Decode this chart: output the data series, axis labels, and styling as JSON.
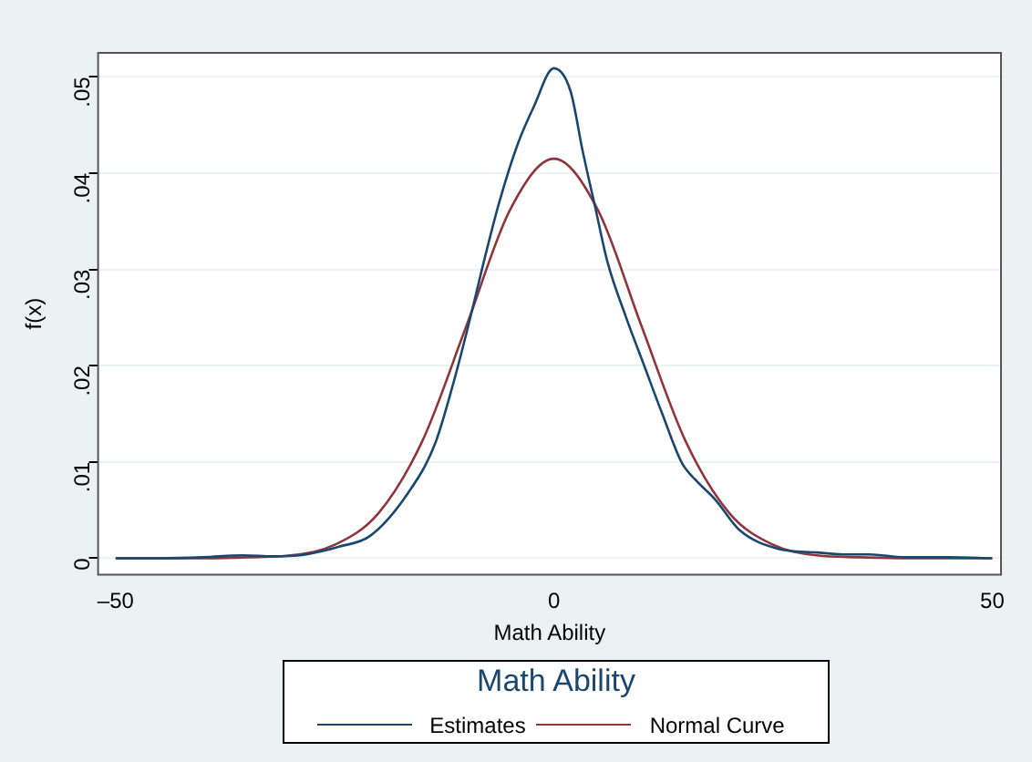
{
  "chart_data": {
    "type": "line",
    "xlabel": "Math Ability",
    "ylabel": "f(x)",
    "legend_title": "Math Ability",
    "legend": "bottom",
    "grid": "y",
    "marker": "none",
    "line_style": "solid",
    "xlim": [
      -52,
      51
    ],
    "ylim": [
      -0.0017,
      0.0525
    ],
    "xticks": [
      {
        "value": -50,
        "label": "–50"
      },
      0,
      50
    ],
    "yticks": [
      0,
      {
        "value": 0.01,
        "label": ".01"
      },
      {
        "value": 0.02,
        "label": ".02"
      },
      {
        "value": 0.03,
        "label": ".03"
      },
      {
        "value": 0.04,
        "label": ".04"
      },
      {
        "value": 0.05,
        "label": ".05"
      }
    ],
    "series": [
      {
        "name": "Estimates",
        "color": "#1a476f",
        "x": [
          -50,
          -45,
          -40,
          -35.5,
          -32,
          -29,
          -26.6,
          -24.5,
          -21,
          -16.7,
          -13.6,
          -11.5,
          -9.7,
          -8,
          -6.2,
          -4.1,
          -2.3,
          0,
          1.9,
          3.3,
          4.7,
          6.1,
          8.2,
          10.3,
          12.4,
          14.6,
          16.3,
          18.4,
          21.2,
          25.5,
          30,
          33,
          36,
          40,
          45,
          50
        ],
        "values": [
          0,
          0,
          0.0001,
          0.0003,
          0.0002,
          0.0003,
          0.0007,
          0.0012,
          0.0023,
          0.0067,
          0.0118,
          0.0181,
          0.0244,
          0.0308,
          0.0371,
          0.0431,
          0.0469,
          0.0509,
          0.0485,
          0.0422,
          0.0365,
          0.0308,
          0.0251,
          0.02,
          0.0149,
          0.0099,
          0.008,
          0.0061,
          0.0029,
          0.001,
          0.0006,
          0.0004,
          0.0004,
          0.0001,
          0.0001,
          0
        ]
      },
      {
        "name": "Normal Curve",
        "color": "#90353b",
        "x": [
          -50,
          -40,
          -35,
          -30,
          -25,
          -20,
          -15,
          -10,
          -5,
          0,
          5,
          10,
          15,
          20,
          25,
          30,
          35,
          40,
          50
        ],
        "values": [
          0,
          0,
          0.0001,
          0.0003,
          0.0014,
          0.0047,
          0.0122,
          0.0241,
          0.0362,
          0.0415,
          0.0362,
          0.0241,
          0.0122,
          0.0047,
          0.0014,
          0.0003,
          0.0001,
          0,
          0
        ]
      }
    ]
  }
}
